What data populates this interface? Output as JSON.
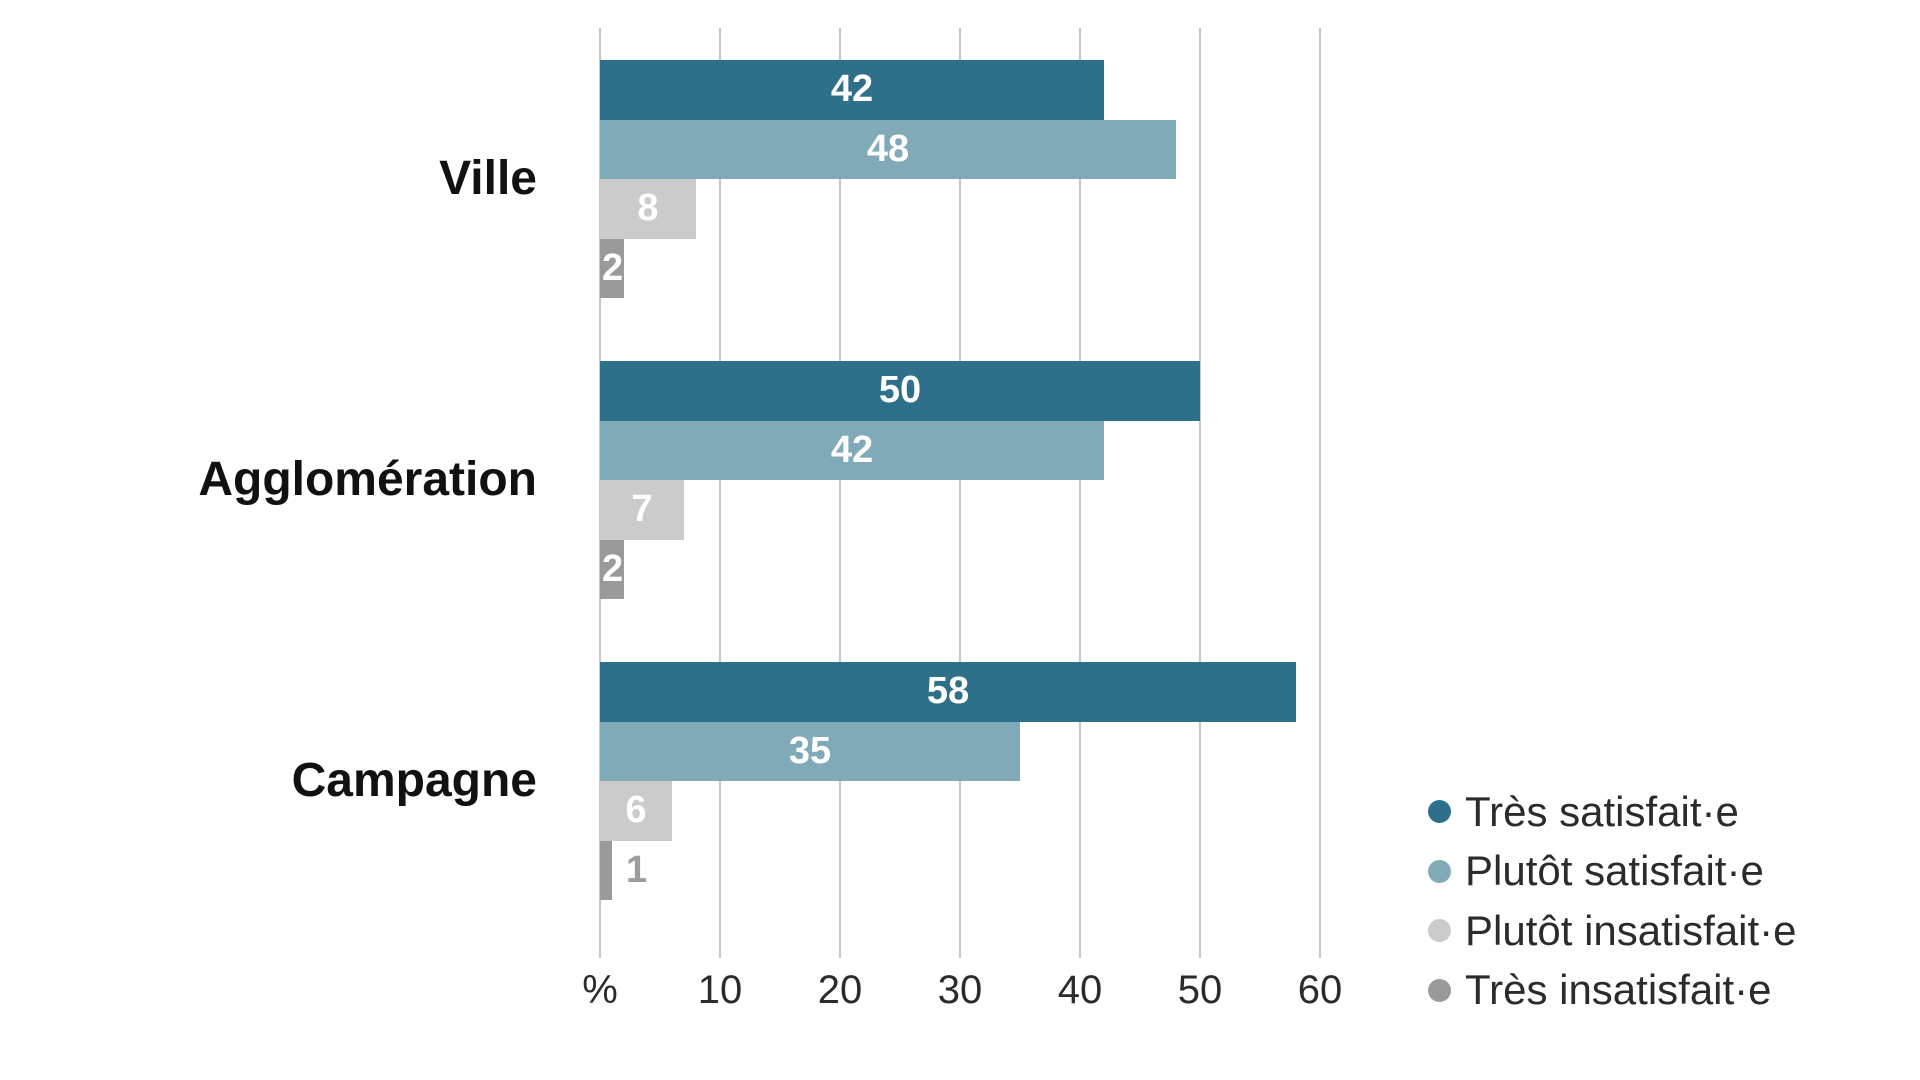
{
  "chart_data": {
    "type": "bar",
    "orientation": "horizontal",
    "categories": [
      "Ville",
      "Agglomération",
      "Campagne"
    ],
    "series": [
      {
        "name": "Très satisfait·e",
        "color": "#2e6f89",
        "values": [
          42,
          50,
          58
        ]
      },
      {
        "name": "Plutôt satisfait·e",
        "color": "#81aab9",
        "values": [
          48,
          42,
          35
        ]
      },
      {
        "name": "Plutôt insatisfait·e",
        "color": "#cbcbcb",
        "values": [
          8,
          7,
          6
        ]
      },
      {
        "name": "Très insatisfait·e",
        "color": "#9a9a9a",
        "values": [
          2,
          2,
          1
        ]
      }
    ],
    "x_axis": {
      "unit_label": "%",
      "tick_labels": [
        "%",
        "10",
        "20",
        "30",
        "40",
        "50",
        "60"
      ],
      "tick_values": [
        0,
        10,
        20,
        30,
        40,
        50,
        60
      ],
      "range": [
        0,
        60
      ]
    },
    "grid": "vertical",
    "value_labels": "on-bars",
    "legend": {
      "position": "bottom-right"
    }
  },
  "colors": {
    "background": "#ffffff",
    "gridline": "#c6c6c6",
    "tick_text": "#2b2b2b",
    "category_text": "#111111",
    "legend_text": "#2b2b2b",
    "bar_label_inside": "#ffffff",
    "bar_label_outside": "#9c9c9c"
  }
}
